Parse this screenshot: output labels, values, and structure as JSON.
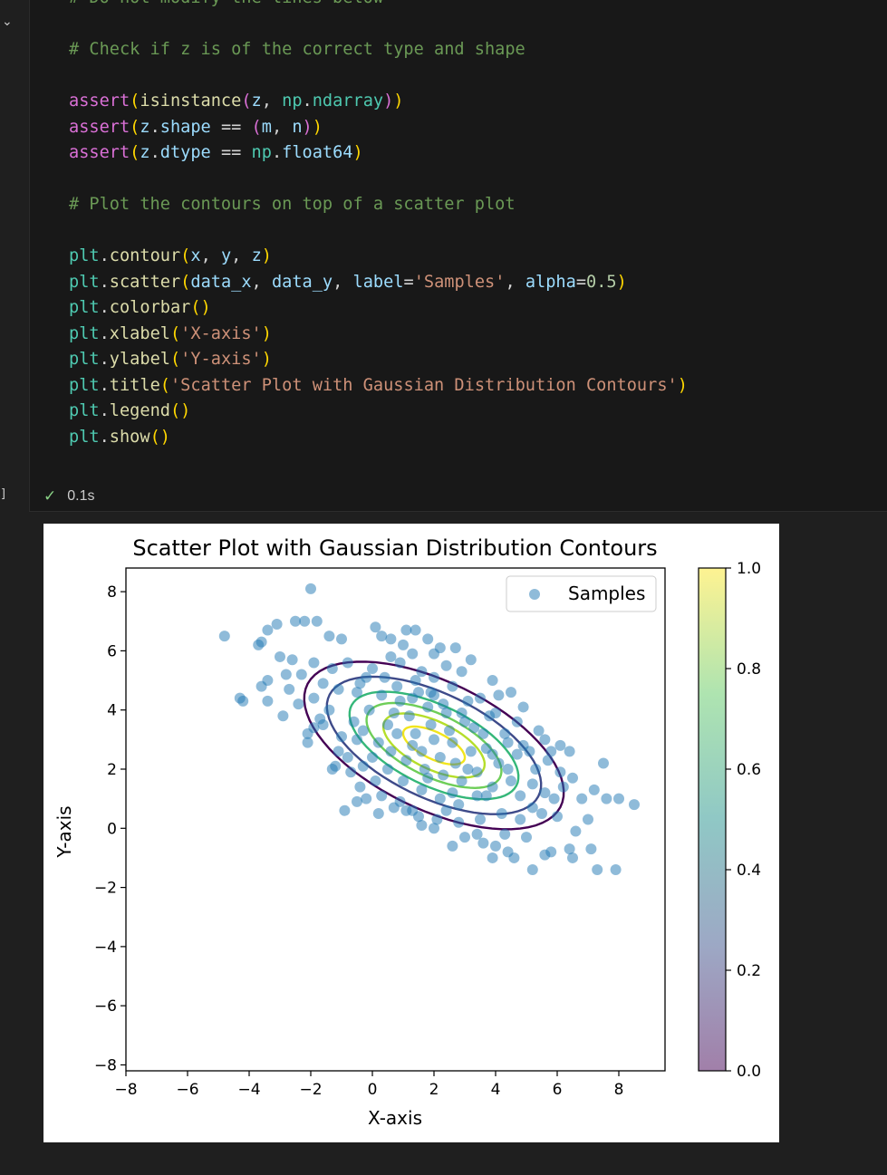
{
  "cell": {
    "chevron": "⌄",
    "exec_count": "]",
    "status_check": "✓",
    "duration": "0.1s"
  },
  "code_lines": [
    [
      {
        "t": "# Do not modify the lines below",
        "c": "t-cm"
      }
    ],
    [],
    [
      {
        "t": "# Check if z is of the correct type and shape",
        "c": "t-cm"
      }
    ],
    [],
    [
      {
        "t": "assert",
        "c": "t-p2"
      },
      {
        "t": "(",
        "c": "t-p1"
      },
      {
        "t": "isinstance",
        "c": "t-fn"
      },
      {
        "t": "(",
        "c": "t-p2"
      },
      {
        "t": "z",
        "c": "t-var"
      },
      {
        "t": ", ",
        "c": "t-op"
      },
      {
        "t": "np",
        "c": "t-id"
      },
      {
        "t": ".",
        "c": "t-op"
      },
      {
        "t": "ndarray",
        "c": "t-id"
      },
      {
        "t": ")",
        "c": "t-p2"
      },
      {
        "t": ")",
        "c": "t-p1"
      }
    ],
    [
      {
        "t": "assert",
        "c": "t-p2"
      },
      {
        "t": "(",
        "c": "t-p1"
      },
      {
        "t": "z",
        "c": "t-var"
      },
      {
        "t": ".",
        "c": "t-op"
      },
      {
        "t": "shape",
        "c": "t-var"
      },
      {
        "t": " == ",
        "c": "t-op"
      },
      {
        "t": "(",
        "c": "t-p2"
      },
      {
        "t": "m",
        "c": "t-var"
      },
      {
        "t": ", ",
        "c": "t-op"
      },
      {
        "t": "n",
        "c": "t-var"
      },
      {
        "t": ")",
        "c": "t-p2"
      },
      {
        "t": ")",
        "c": "t-p1"
      }
    ],
    [
      {
        "t": "assert",
        "c": "t-p2"
      },
      {
        "t": "(",
        "c": "t-p1"
      },
      {
        "t": "z",
        "c": "t-var"
      },
      {
        "t": ".",
        "c": "t-op"
      },
      {
        "t": "dtype",
        "c": "t-var"
      },
      {
        "t": " == ",
        "c": "t-op"
      },
      {
        "t": "np",
        "c": "t-id"
      },
      {
        "t": ".",
        "c": "t-op"
      },
      {
        "t": "float64",
        "c": "t-var"
      },
      {
        "t": ")",
        "c": "t-p1"
      }
    ],
    [],
    [
      {
        "t": "# Plot the contours on top of a scatter plot",
        "c": "t-cm"
      }
    ],
    [],
    [
      {
        "t": "plt",
        "c": "t-id"
      },
      {
        "t": ".",
        "c": "t-op"
      },
      {
        "t": "contour",
        "c": "t-fn"
      },
      {
        "t": "(",
        "c": "t-p1"
      },
      {
        "t": "x",
        "c": "t-var"
      },
      {
        "t": ", ",
        "c": "t-op"
      },
      {
        "t": "y",
        "c": "t-var"
      },
      {
        "t": ", ",
        "c": "t-op"
      },
      {
        "t": "z",
        "c": "t-var"
      },
      {
        "t": ")",
        "c": "t-p1"
      }
    ],
    [
      {
        "t": "plt",
        "c": "t-id"
      },
      {
        "t": ".",
        "c": "t-op"
      },
      {
        "t": "scatter",
        "c": "t-fn"
      },
      {
        "t": "(",
        "c": "t-p1"
      },
      {
        "t": "data_x",
        "c": "t-var"
      },
      {
        "t": ", ",
        "c": "t-op"
      },
      {
        "t": "data_y",
        "c": "t-var"
      },
      {
        "t": ", ",
        "c": "t-op"
      },
      {
        "t": "label",
        "c": "t-var"
      },
      {
        "t": "=",
        "c": "t-op"
      },
      {
        "t": "'Samples'",
        "c": "t-str"
      },
      {
        "t": ", ",
        "c": "t-op"
      },
      {
        "t": "alpha",
        "c": "t-var"
      },
      {
        "t": "=",
        "c": "t-op"
      },
      {
        "t": "0.5",
        "c": "t-num"
      },
      {
        "t": ")",
        "c": "t-p1"
      }
    ],
    [
      {
        "t": "plt",
        "c": "t-id"
      },
      {
        "t": ".",
        "c": "t-op"
      },
      {
        "t": "colorbar",
        "c": "t-fn"
      },
      {
        "t": "()",
        "c": "t-p1"
      }
    ],
    [
      {
        "t": "plt",
        "c": "t-id"
      },
      {
        "t": ".",
        "c": "t-op"
      },
      {
        "t": "xlabel",
        "c": "t-fn"
      },
      {
        "t": "(",
        "c": "t-p1"
      },
      {
        "t": "'X-axis'",
        "c": "t-str"
      },
      {
        "t": ")",
        "c": "t-p1"
      }
    ],
    [
      {
        "t": "plt",
        "c": "t-id"
      },
      {
        "t": ".",
        "c": "t-op"
      },
      {
        "t": "ylabel",
        "c": "t-fn"
      },
      {
        "t": "(",
        "c": "t-p1"
      },
      {
        "t": "'Y-axis'",
        "c": "t-str"
      },
      {
        "t": ")",
        "c": "t-p1"
      }
    ],
    [
      {
        "t": "plt",
        "c": "t-id"
      },
      {
        "t": ".",
        "c": "t-op"
      },
      {
        "t": "title",
        "c": "t-fn"
      },
      {
        "t": "(",
        "c": "t-p1"
      },
      {
        "t": "'Scatter Plot with Gaussian Distribution Contours'",
        "c": "t-str"
      },
      {
        "t": ")",
        "c": "t-p1"
      }
    ],
    [
      {
        "t": "plt",
        "c": "t-id"
      },
      {
        "t": ".",
        "c": "t-op"
      },
      {
        "t": "legend",
        "c": "t-fn"
      },
      {
        "t": "()",
        "c": "t-p1"
      }
    ],
    [
      {
        "t": "plt",
        "c": "t-id"
      },
      {
        "t": ".",
        "c": "t-op"
      },
      {
        "t": "show",
        "c": "t-fn"
      },
      {
        "t": "()",
        "c": "t-p1"
      }
    ]
  ],
  "chart_data": {
    "type": "scatter",
    "title": "Scatter Plot with Gaussian Distribution Contours",
    "xlabel": "X-axis",
    "ylabel": "Y-axis",
    "xlim": [
      -8,
      9.5
    ],
    "ylim": [
      -8.2,
      8.8
    ],
    "xticks": [
      -8,
      -6,
      -4,
      -2,
      0,
      2,
      4,
      6,
      8
    ],
    "yticks": [
      -8,
      -6,
      -4,
      -2,
      0,
      2,
      4,
      6,
      8
    ],
    "legend": {
      "entries": [
        "Samples"
      ],
      "placement": "upper right"
    },
    "series": [
      {
        "name": "Samples",
        "color": "#1f77b4",
        "alpha": 0.5,
        "points": [
          [
            -2.0,
            8.1
          ],
          [
            -2.2,
            7.0
          ],
          [
            -1.8,
            7.0
          ],
          [
            -2.5,
            7.0
          ],
          [
            -4.8,
            6.5
          ],
          [
            -3.1,
            6.9
          ],
          [
            -3.4,
            6.7
          ],
          [
            -3.6,
            6.3
          ],
          [
            -3.7,
            6.2
          ],
          [
            -3.0,
            5.8
          ],
          [
            -1.4,
            6.5
          ],
          [
            -1.0,
            6.4
          ],
          [
            0.1,
            6.8
          ],
          [
            0.3,
            6.5
          ],
          [
            0.6,
            6.4
          ],
          [
            1.1,
            6.7
          ],
          [
            1.4,
            6.7
          ],
          [
            1.8,
            6.4
          ],
          [
            2.2,
            6.1
          ],
          [
            2.7,
            6.1
          ],
          [
            -2.6,
            5.7
          ],
          [
            -2.8,
            5.2
          ],
          [
            -3.4,
            5.0
          ],
          [
            -3.6,
            4.8
          ],
          [
            -2.7,
            4.7
          ],
          [
            -2.4,
            4.2
          ],
          [
            -3.4,
            4.3
          ],
          [
            -4.2,
            4.3
          ],
          [
            -4.3,
            4.4
          ],
          [
            -2.9,
            3.8
          ],
          [
            -1.9,
            3.4
          ],
          [
            -2.1,
            3.2
          ],
          [
            -2.1,
            2.9
          ],
          [
            -1.7,
            3.7
          ],
          [
            -1.2,
            2.1
          ],
          [
            -1.3,
            2.0
          ],
          [
            -0.4,
            1.4
          ],
          [
            -0.5,
            0.9
          ],
          [
            0.9,
            0.9
          ],
          [
            1.1,
            0.6
          ],
          [
            1.3,
            0.6
          ],
          [
            1.6,
            0.1
          ],
          [
            2.0,
            0.0
          ],
          [
            2.4,
            0.6
          ],
          [
            2.6,
            -0.6
          ],
          [
            3.4,
            -0.2
          ],
          [
            4.0,
            -0.6
          ],
          [
            4.4,
            -0.8
          ],
          [
            4.6,
            -1.0
          ],
          [
            3.9,
            -1.0
          ],
          [
            5.2,
            -1.4
          ],
          [
            5.6,
            -0.9
          ],
          [
            5.8,
            -0.8
          ],
          [
            6.4,
            -0.7
          ],
          [
            6.5,
            -1.0
          ],
          [
            7.1,
            -0.7
          ],
          [
            7.3,
            -1.4
          ],
          [
            7.9,
            -1.4
          ],
          [
            6.6,
            -0.1
          ],
          [
            7.0,
            0.3
          ],
          [
            7.6,
            1.0
          ],
          [
            8.0,
            1.0
          ],
          [
            8.5,
            0.8
          ],
          [
            7.5,
            2.2
          ],
          [
            7.2,
            1.3
          ],
          [
            6.8,
            1.0
          ],
          [
            6.5,
            1.7
          ],
          [
            6.2,
            1.4
          ],
          [
            6.4,
            2.6
          ],
          [
            6.1,
            2.8
          ],
          [
            5.8,
            2.6
          ],
          [
            5.6,
            3.0
          ],
          [
            4.5,
            4.6
          ],
          [
            4.9,
            4.1
          ],
          [
            4.1,
            4.5
          ],
          [
            3.9,
            5.0
          ],
          [
            3.2,
            5.7
          ],
          [
            2.9,
            5.3
          ],
          [
            -0.2,
            5.1
          ],
          [
            -0.5,
            4.6
          ],
          [
            0.0,
            5.4
          ],
          [
            0.6,
            5.8
          ],
          [
            0.9,
            5.6
          ],
          [
            1.3,
            5.9
          ],
          [
            1.6,
            5.3
          ],
          [
            -1.0,
            3.1
          ],
          [
            -0.6,
            3.6
          ],
          [
            -0.8,
            2.4
          ],
          [
            -0.3,
            2.1
          ],
          [
            0.2,
            2.9
          ],
          [
            0.7,
            3.9
          ],
          [
            1.3,
            4.4
          ],
          [
            1.9,
            4.6
          ],
          [
            2.3,
            4.2
          ],
          [
            2.9,
            3.9
          ],
          [
            3.3,
            3.4
          ],
          [
            3.7,
            2.7
          ],
          [
            4.1,
            2.2
          ],
          [
            4.5,
            1.6
          ],
          [
            4.8,
            1.1
          ],
          [
            5.2,
            0.7
          ],
          [
            5.6,
            1.2
          ],
          [
            5.3,
            2.0
          ],
          [
            4.9,
            2.8
          ],
          [
            4.3,
            3.2
          ],
          [
            3.8,
            3.8
          ],
          [
            3.1,
            4.3
          ],
          [
            2.6,
            4.8
          ],
          [
            2.0,
            5.1
          ],
          [
            1.4,
            5.0
          ],
          [
            0.8,
            4.8
          ],
          [
            0.3,
            4.5
          ],
          [
            -0.1,
            4.0
          ],
          [
            -0.5,
            3.0
          ],
          [
            0.0,
            2.4
          ],
          [
            0.5,
            2.0
          ],
          [
            1.0,
            1.6
          ],
          [
            1.6,
            1.3
          ],
          [
            2.2,
            1.0
          ],
          [
            2.8,
            0.8
          ],
          [
            3.4,
            1.1
          ],
          [
            3.9,
            1.4
          ],
          [
            4.4,
            2.0
          ],
          [
            4.7,
            2.5
          ],
          [
            3.6,
            3.2
          ],
          [
            3.0,
            3.6
          ],
          [
            2.4,
            3.9
          ],
          [
            1.8,
            4.1
          ],
          [
            1.2,
            3.8
          ],
          [
            0.8,
            3.2
          ],
          [
            0.6,
            2.6
          ],
          [
            1.1,
            2.3
          ],
          [
            1.7,
            2.0
          ],
          [
            2.3,
            1.8
          ],
          [
            2.9,
            1.6
          ],
          [
            3.4,
            1.9
          ],
          [
            3.2,
            2.6
          ],
          [
            2.6,
            2.9
          ],
          [
            2.0,
            3.0
          ],
          [
            1.4,
            3.2
          ],
          [
            1.6,
            2.6
          ],
          [
            2.2,
            2.4
          ],
          [
            2.7,
            2.2
          ],
          [
            2.5,
            3.3
          ],
          [
            1.9,
            3.5
          ],
          [
            1.3,
            2.8
          ],
          [
            0.9,
            4.3
          ],
          [
            0.4,
            5.1
          ],
          [
            -0.4,
            4.9
          ],
          [
            -1.1,
            4.7
          ],
          [
            -1.6,
            4.9
          ],
          [
            -1.9,
            4.4
          ],
          [
            -1.4,
            4.0
          ],
          [
            -1.6,
            3.5
          ],
          [
            -1.1,
            2.6
          ],
          [
            -0.7,
            1.9
          ],
          [
            0.1,
            1.6
          ],
          [
            0.3,
            1.1
          ],
          [
            0.7,
            0.7
          ],
          [
            1.5,
            0.4
          ],
          [
            2.1,
            0.3
          ],
          [
            2.8,
            0.2
          ],
          [
            3.5,
            0.3
          ],
          [
            4.2,
            0.5
          ],
          [
            4.8,
            0.3
          ],
          [
            5.5,
            0.5
          ],
          [
            5.9,
            1.0
          ],
          [
            6.1,
            1.9
          ],
          [
            5.7,
            2.3
          ],
          [
            5.1,
            2.6
          ],
          [
            5.4,
            3.3
          ],
          [
            4.7,
            3.6
          ],
          [
            4.0,
            3.9
          ],
          [
            3.5,
            4.4
          ],
          [
            2.4,
            5.5
          ],
          [
            2.0,
            5.9
          ],
          [
            1.0,
            6.2
          ],
          [
            -0.8,
            5.6
          ],
          [
            -1.3,
            5.4
          ],
          [
            -1.9,
            5.6
          ],
          [
            -2.3,
            5.2
          ],
          [
            -0.9,
            0.6
          ],
          [
            3.0,
            -0.3
          ],
          [
            4.3,
            -0.2
          ],
          [
            5.0,
            -0.3
          ],
          [
            3.6,
            -0.5
          ],
          [
            6.0,
            0.4
          ],
          [
            5.2,
            1.5
          ],
          [
            0.2,
            0.5
          ],
          [
            -0.2,
            1.0
          ],
          [
            1.8,
            1.7
          ],
          [
            2.6,
            1.2
          ],
          [
            3.1,
            2.0
          ],
          [
            3.9,
            2.5
          ],
          [
            4.4,
            2.9
          ],
          [
            3.7,
            1.1
          ],
          [
            2.0,
            4.5
          ],
          [
            1.5,
            4.6
          ],
          [
            0.5,
            3.5
          ],
          [
            -0.3,
            3.3
          ]
        ]
      }
    ],
    "contours": {
      "center": [
        2.0,
        2.8
      ],
      "angle_deg": -27,
      "semi_axes": [
        [
          1.1,
          0.45
        ],
        [
          1.8,
          0.8
        ],
        [
          2.4,
          1.05
        ],
        [
          3.0,
          1.35
        ],
        [
          3.8,
          1.75
        ],
        [
          4.6,
          2.15
        ]
      ],
      "colors": [
        "#f1e51d",
        "#b5de2b",
        "#6ece58",
        "#35b779",
        "#3e4a89",
        "#440154"
      ]
    },
    "colorbar": {
      "range": [
        0.0,
        1.0
      ],
      "ticks": [
        "0.0",
        "0.2",
        "0.4",
        "0.6",
        "0.8",
        "1.0"
      ],
      "alpha": 0.5,
      "colormap": "viridis"
    }
  }
}
